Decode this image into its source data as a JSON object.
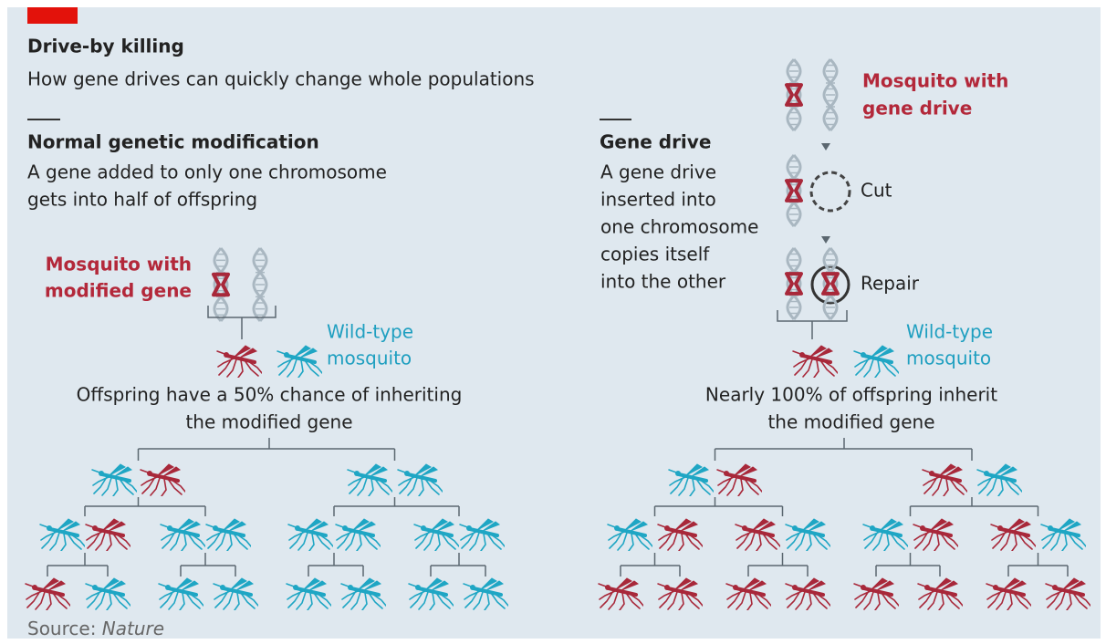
{
  "header": {
    "title": "Drive-by killing",
    "subtitle": "How gene drives can quickly change whole populations"
  },
  "left": {
    "heading": "Normal genetic modification",
    "description": [
      "A gene added to only one chromosome",
      "gets into half of offspring"
    ],
    "parent_label": [
      "Mosquito with",
      "modified gene"
    ],
    "wild_label": [
      "Wild-type",
      "mosquito"
    ],
    "offspring_text": [
      "Offspring have a 50% chance of inheriting",
      "the modified gene"
    ]
  },
  "right": {
    "heading": "Gene drive",
    "description": [
      "A gene drive",
      "inserted into",
      "one chromosome",
      "copies itself",
      "into the other"
    ],
    "parent_label": [
      "Mosquito with",
      "gene drive"
    ],
    "steps": [
      "Cut",
      "Repair"
    ],
    "wild_label": [
      "Wild-type",
      "mosquito"
    ],
    "offspring_text": [
      "Nearly 100% of offspring inherit",
      "the modified gene"
    ]
  },
  "source": {
    "label": "Source:",
    "name": "Nature"
  }
}
